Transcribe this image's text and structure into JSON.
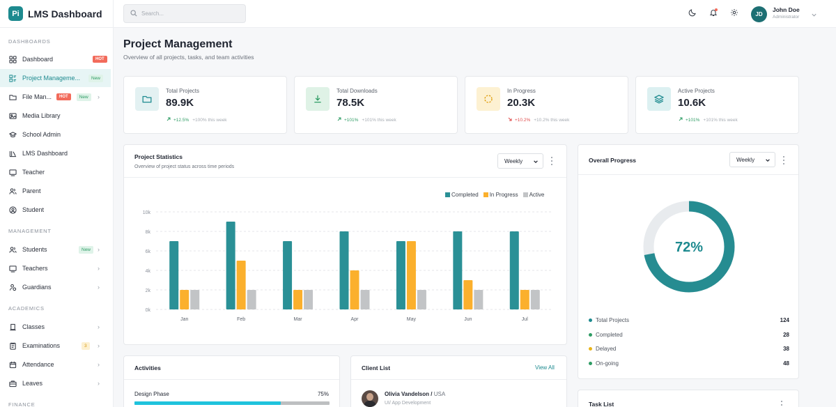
{
  "brand": {
    "logo": "Pi",
    "name": "LMS Dashboard"
  },
  "sidebar": {
    "sections": [
      {
        "label": "DASHBOARDS"
      },
      {
        "label": "MANAGEMENT"
      },
      {
        "label": "ACADEMICS"
      },
      {
        "label": "FINANCE"
      }
    ],
    "items": [
      {
        "label": "Dashboard",
        "icon": "grid-icon",
        "badge": "HOT"
      },
      {
        "label": "Project Manageme...",
        "icon": "project-icon",
        "badge": "New"
      },
      {
        "label": "File Man...",
        "icon": "folder-icon",
        "badge": "HOT",
        "badge2": "New"
      },
      {
        "label": "Media Library",
        "icon": "media-icon"
      },
      {
        "label": "School Admin",
        "icon": "school-icon"
      },
      {
        "label": "LMS Dashboard",
        "icon": "library-icon"
      },
      {
        "label": "Teacher",
        "icon": "teacher-icon"
      },
      {
        "label": "Parent",
        "icon": "parent-icon"
      },
      {
        "label": "Student",
        "icon": "student-icon"
      },
      {
        "label": "Students",
        "icon": "students-icon",
        "badge": "New"
      },
      {
        "label": "Teachers",
        "icon": "teachers-icon"
      },
      {
        "label": "Guardians",
        "icon": "guardians-icon"
      },
      {
        "label": "Classes",
        "icon": "classes-icon"
      },
      {
        "label": "Examinations",
        "icon": "exam-icon",
        "badge": "3"
      },
      {
        "label": "Attendance",
        "icon": "calendar-icon"
      },
      {
        "label": "Leaves",
        "icon": "briefcase-icon"
      }
    ]
  },
  "topbar": {
    "search_placeholder": "Search...",
    "user": {
      "initials": "JD",
      "name": "John Doe",
      "role": "Administrator"
    }
  },
  "page": {
    "title": "Project Management",
    "subtitle": "Overview of all projects, tasks, and team activities"
  },
  "stats": [
    {
      "label": "Total Projects",
      "value": "89.9K",
      "change": "+12.5%",
      "week": "+100% this week",
      "trend": "up",
      "color": "#1d8a8f",
      "bg": "#e3f1f2",
      "icon": "folder-icon"
    },
    {
      "label": "Total Downloads",
      "value": "78.5K",
      "change": "+101%",
      "week": "+101% this week",
      "trend": "up",
      "color": "#2e9c64",
      "bg": "#dff2e6",
      "icon": "download-icon"
    },
    {
      "label": "In Progress",
      "value": "20.3K",
      "change": "+10.2%",
      "week": "+10.2% this week",
      "trend": "down",
      "color": "#e0a114",
      "bg": "#fdf1d2",
      "icon": "loader-icon"
    },
    {
      "label": "Active Projects",
      "value": "10.6K",
      "change": "+101%",
      "week": "+101% this week",
      "trend": "up",
      "color": "#1d8a8f",
      "bg": "#dcf0f1",
      "icon": "layers-icon"
    }
  ],
  "project_stats": {
    "title": "Project Statistics",
    "subtitle": "Overview of project status across time periods",
    "period": "Weekly"
  },
  "chart_data": {
    "type": "bar",
    "categories": [
      "Jan",
      "Feb",
      "Mar",
      "Apr",
      "May",
      "Jun",
      "Jul"
    ],
    "series": [
      {
        "name": "Completed",
        "color": "#2a9096",
        "values": [
          7000,
          9000,
          7000,
          8000,
          7000,
          8000,
          8000
        ]
      },
      {
        "name": "In Progress",
        "color": "#fbb02d",
        "values": [
          2000,
          5000,
          2000,
          4000,
          7000,
          3000,
          2000
        ]
      },
      {
        "name": "Active",
        "color": "#c2c4c6",
        "values": [
          2000,
          2000,
          2000,
          2000,
          2000,
          2000,
          2000
        ]
      }
    ],
    "ylim": [
      0,
      10000
    ],
    "yticks": [
      "0k",
      "2k",
      "4k",
      "6k",
      "8k",
      "10k"
    ],
    "grid": true,
    "legend": "top-right"
  },
  "overall_progress": {
    "title": "Overall Progress",
    "period": "Weekly",
    "percent": "72%",
    "fraction": 0.72,
    "colors": {
      "fill": "#268c91",
      "track": "#e8ebee"
    },
    "rows": [
      {
        "label": "Total Projects",
        "value": "124",
        "color": "#1d8a8f"
      },
      {
        "label": "Completed",
        "value": "28",
        "color": "#2e9c64"
      },
      {
        "label": "Delayed",
        "value": "38",
        "color": "#e9b41a"
      },
      {
        "label": "On-going",
        "value": "48",
        "color": "#2e9c64"
      }
    ]
  },
  "activities": {
    "title": "Activities",
    "items": [
      {
        "label": "Design Phase",
        "percent": "75%",
        "fraction": 0.75
      }
    ]
  },
  "client_list": {
    "title": "Client List",
    "view_all": "View All",
    "clients": [
      {
        "name": "Olivia Vandelson",
        "country": "USA",
        "role": "UI/ App Development"
      }
    ]
  },
  "task_list": {
    "title": "Task List"
  }
}
